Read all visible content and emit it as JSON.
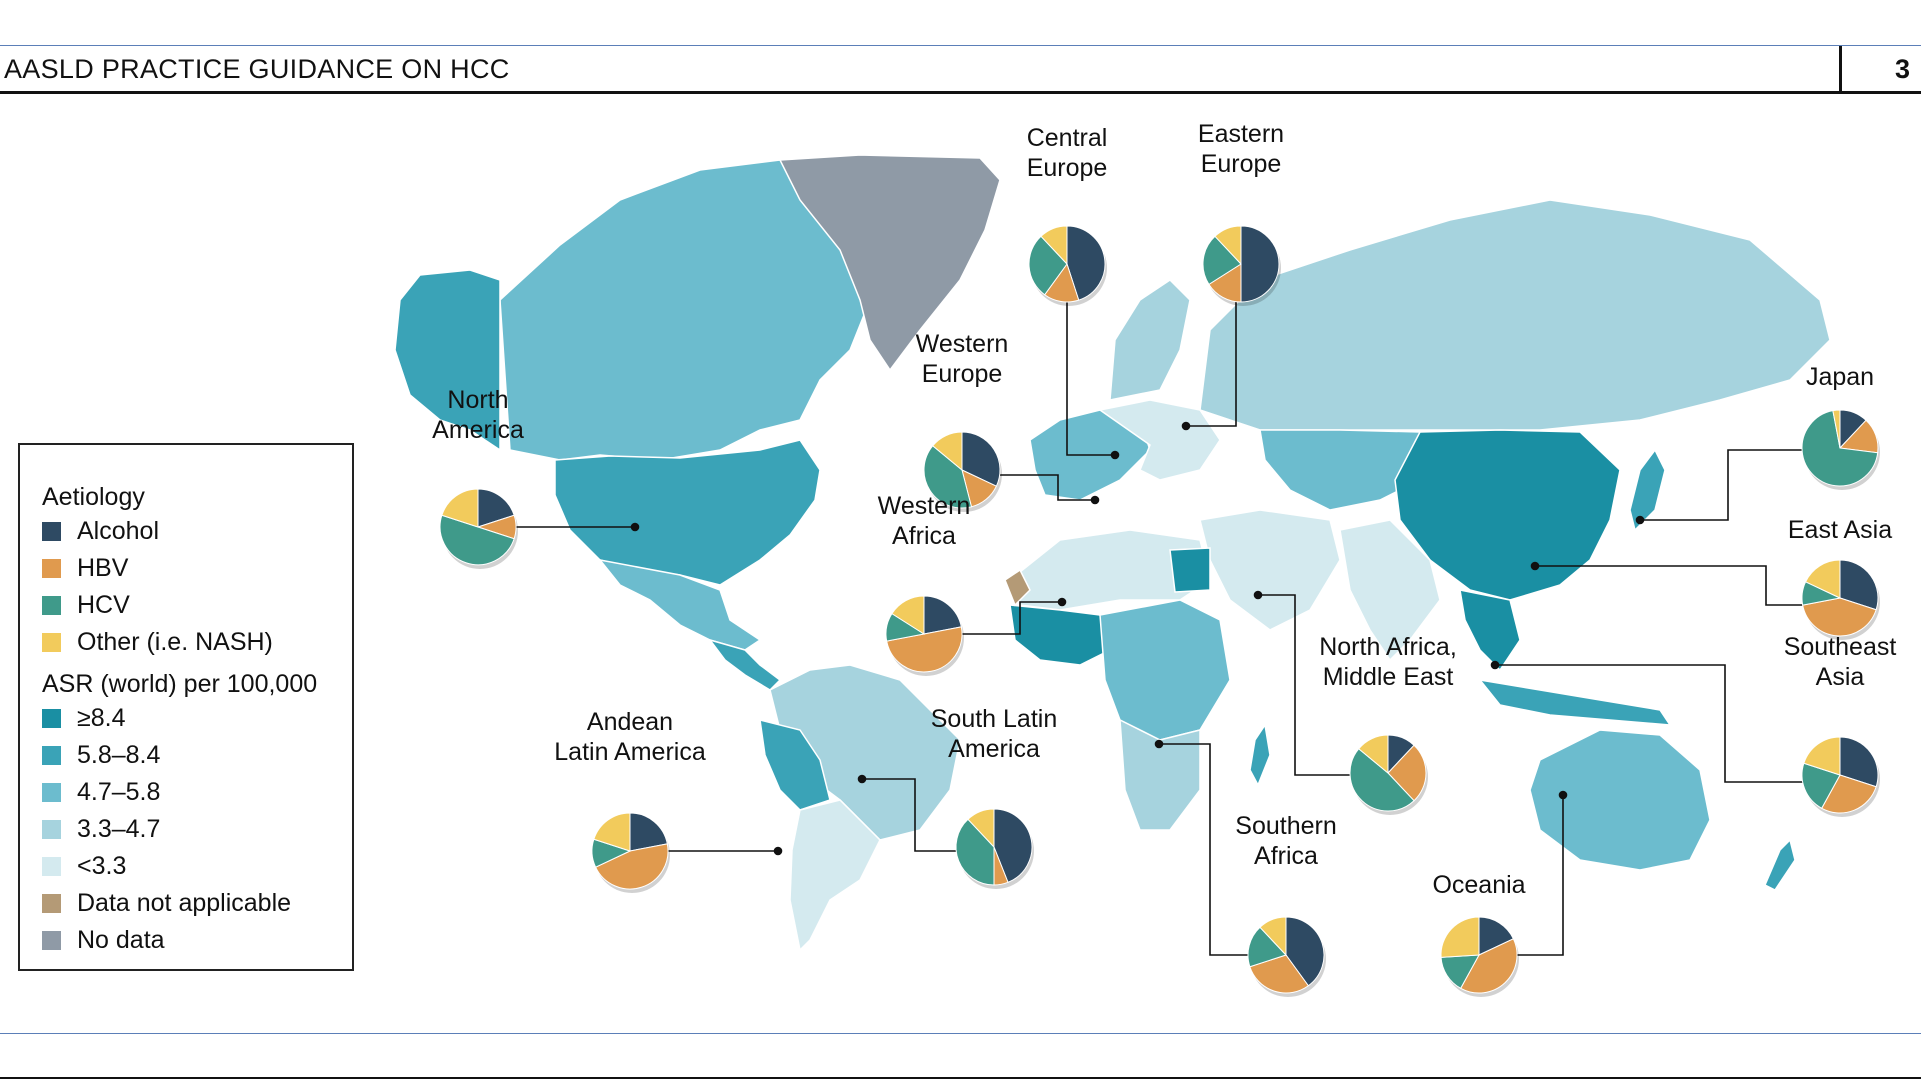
{
  "header": {
    "running_title": "AASLD PRACTICE GUIDANCE ON HCC",
    "page_number": "3"
  },
  "colors": {
    "alcohol": "#2e4a63",
    "hbv": "#e09a4e",
    "hcv": "#3f9a8a",
    "other": "#f2cb5c",
    "asr_ge_8_4": "#1a8fa3",
    "asr_5_8_8_4": "#3aa3b7",
    "asr_4_7_5_8": "#6cbcce",
    "asr_3_3_4_7": "#a6d3de",
    "asr_lt_3_3": "#d4eaef",
    "data_not_applicable": "#b49a76",
    "no_data": "#8f9aa6"
  },
  "legend": {
    "aetiology_heading": "Aetiology",
    "aetiology_items": [
      {
        "label": "Alcohol",
        "color": "#2e4a63"
      },
      {
        "label": "HBV",
        "color": "#e09a4e"
      },
      {
        "label": "HCV",
        "color": "#3f9a8a"
      },
      {
        "label": "Other (i.e. NASH)",
        "color": "#f2cb5c"
      }
    ],
    "asr_heading": "ASR (world) per 100,000",
    "asr_items": [
      {
        "label": "≥8.4",
        "color": "#1a8fa3"
      },
      {
        "label": "5.8–8.4",
        "color": "#3aa3b7"
      },
      {
        "label": "4.7–5.8",
        "color": "#6cbcce"
      },
      {
        "label": "3.3–4.7",
        "color": "#a6d3de"
      },
      {
        "label": "<3.3",
        "color": "#d4eaef"
      },
      {
        "label": "Data not applicable",
        "color": "#b49a76"
      },
      {
        "label": "No data",
        "color": "#8f9aa6"
      }
    ]
  },
  "regions": [
    {
      "key": "north-america",
      "label_lines": [
        "North",
        "America"
      ],
      "aetiology_fractions": {
        "alcohol": 0.2,
        "hbv": 0.1,
        "hcv": 0.5,
        "other": 0.2
      }
    },
    {
      "key": "central-europe",
      "label_lines": [
        "Central",
        "Europe"
      ],
      "aetiology_fractions": {
        "alcohol": 0.45,
        "hbv": 0.15,
        "hcv": 0.28,
        "other": 0.12
      }
    },
    {
      "key": "eastern-europe",
      "label_lines": [
        "Eastern",
        "Europe"
      ],
      "aetiology_fractions": {
        "alcohol": 0.5,
        "hbv": 0.16,
        "hcv": 0.22,
        "other": 0.12
      }
    },
    {
      "key": "western-europe",
      "label_lines": [
        "Western",
        "Europe"
      ],
      "aetiology_fractions": {
        "alcohol": 0.32,
        "hbv": 0.14,
        "hcv": 0.4,
        "other": 0.14
      }
    },
    {
      "key": "western-africa",
      "label_lines": [
        "Western",
        "Africa"
      ],
      "aetiology_fractions": {
        "alcohol": 0.22,
        "hbv": 0.5,
        "hcv": 0.12,
        "other": 0.16
      }
    },
    {
      "key": "japan",
      "label_lines": [
        "Japan"
      ],
      "aetiology_fractions": {
        "alcohol": 0.12,
        "hbv": 0.15,
        "hcv": 0.7,
        "other": 0.03
      }
    },
    {
      "key": "east-asia",
      "label_lines": [
        "East Asia"
      ],
      "aetiology_fractions": {
        "alcohol": 0.3,
        "hbv": 0.42,
        "hcv": 0.1,
        "other": 0.18
      }
    },
    {
      "key": "north-africa-middle-east",
      "label_lines": [
        "North Africa,",
        "Middle East"
      ],
      "aetiology_fractions": {
        "alcohol": 0.12,
        "hbv": 0.26,
        "hcv": 0.48,
        "other": 0.14
      }
    },
    {
      "key": "southeast-asia",
      "label_lines": [
        "Southeast",
        "Asia"
      ],
      "aetiology_fractions": {
        "alcohol": 0.3,
        "hbv": 0.28,
        "hcv": 0.22,
        "other": 0.2
      }
    },
    {
      "key": "andean-latin-america",
      "label_lines": [
        "Andean",
        "Latin America"
      ],
      "aetiology_fractions": {
        "alcohol": 0.22,
        "hbv": 0.46,
        "hcv": 0.12,
        "other": 0.2
      }
    },
    {
      "key": "south-latin-america",
      "label_lines": [
        "South Latin",
        "America"
      ],
      "aetiology_fractions": {
        "alcohol": 0.44,
        "hbv": 0.06,
        "hcv": 0.38,
        "other": 0.12
      }
    },
    {
      "key": "southern-africa",
      "label_lines": [
        "Southern",
        "Africa"
      ],
      "aetiology_fractions": {
        "alcohol": 0.4,
        "hbv": 0.3,
        "hcv": 0.18,
        "other": 0.12
      }
    },
    {
      "key": "oceania",
      "label_lines": [
        "Oceania"
      ],
      "aetiology_fractions": {
        "alcohol": 0.18,
        "hbv": 0.4,
        "hcv": 0.16,
        "other": 0.26
      }
    }
  ]
}
